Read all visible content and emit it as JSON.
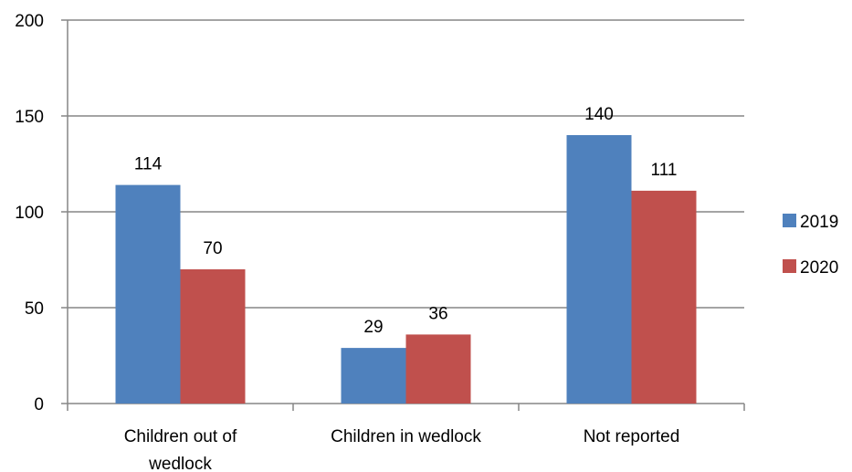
{
  "chart_data": {
    "type": "bar",
    "categories": [
      "Children out of wedlock",
      "Children in wedlock",
      "Not reported"
    ],
    "series": [
      {
        "name": "2019",
        "values": [
          114,
          29,
          140
        ],
        "color": "#4F81BD"
      },
      {
        "name": "2020",
        "values": [
          70,
          36,
          111
        ],
        "color": "#C0504D"
      }
    ],
    "ylim": [
      0,
      200
    ],
    "yticks": [
      0,
      50,
      100,
      150,
      200
    ],
    "grid": true,
    "legend": "right",
    "data_labels": true,
    "category_label_lines": [
      [
        "Children out of",
        "wedlock"
      ],
      [
        "Children in wedlock"
      ],
      [
        "Not reported"
      ]
    ]
  }
}
